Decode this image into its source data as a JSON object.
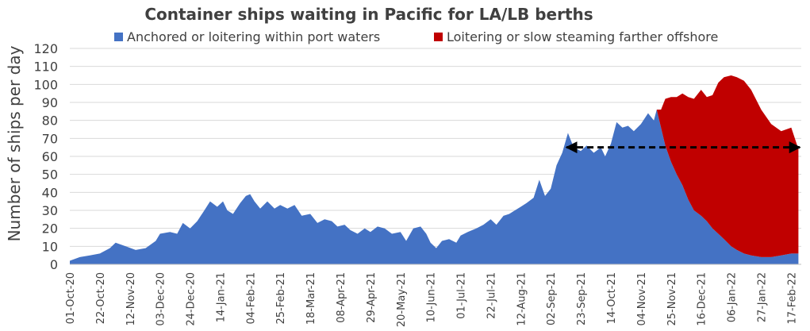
{
  "chart_data": {
    "type": "area",
    "title": "Container ships waiting in Pacific for LA/LB berths",
    "xlabel": "",
    "ylabel": "Number of ships per day",
    "ylim": [
      0,
      120
    ],
    "yticks": [
      0,
      10,
      20,
      30,
      40,
      50,
      60,
      70,
      80,
      90,
      100,
      110,
      120
    ],
    "xlim": [
      "2020-10-01",
      "2022-02-24"
    ],
    "xtick_labels": [
      "01-Oct-20",
      "22-Oct-20",
      "12-Nov-20",
      "03-Dec-20",
      "24-Dec-20",
      "14-Jan-21",
      "04-Feb-21",
      "25-Feb-21",
      "18-Mar-21",
      "08-Apr-21",
      "29-Apr-21",
      "20-May-21",
      "10-Jun-21",
      "01-Jul-21",
      "22-Jul-21",
      "12-Aug-21",
      "02-Sep-21",
      "23-Sep-21",
      "14-Oct-21",
      "04-Nov-21",
      "25-Nov-21",
      "16-Dec-21",
      "06-Jan-22",
      "27-Jan-22",
      "17-Feb-22"
    ],
    "stacked": true,
    "grid": true,
    "legend": "top",
    "colors": {
      "blue": "#4472c4",
      "red": "#c00000",
      "grid": "#d9d9d9"
    },
    "series": [
      {
        "name": "Anchored or loitering within port waters",
        "color": "#4472c4",
        "points": [
          [
            "2020-10-01",
            2
          ],
          [
            "2020-10-08",
            4
          ],
          [
            "2020-10-15",
            5
          ],
          [
            "2020-10-22",
            6
          ],
          [
            "2020-10-29",
            9
          ],
          [
            "2020-11-02",
            12
          ],
          [
            "2020-11-09",
            10
          ],
          [
            "2020-11-16",
            8
          ],
          [
            "2020-11-23",
            9
          ],
          [
            "2020-11-30",
            13
          ],
          [
            "2020-12-03",
            17
          ],
          [
            "2020-12-10",
            18
          ],
          [
            "2020-12-15",
            17
          ],
          [
            "2020-12-19",
            23
          ],
          [
            "2020-12-24",
            20
          ],
          [
            "2020-12-29",
            24
          ],
          [
            "2021-01-03",
            30
          ],
          [
            "2021-01-07",
            35
          ],
          [
            "2021-01-12",
            32
          ],
          [
            "2021-01-16",
            35
          ],
          [
            "2021-01-19",
            30
          ],
          [
            "2021-01-23",
            28
          ],
          [
            "2021-01-28",
            34
          ],
          [
            "2021-02-01",
            38
          ],
          [
            "2021-02-04",
            39
          ],
          [
            "2021-02-07",
            35
          ],
          [
            "2021-02-11",
            31
          ],
          [
            "2021-02-16",
            35
          ],
          [
            "2021-02-21",
            31
          ],
          [
            "2021-02-25",
            33
          ],
          [
            "2021-03-02",
            31
          ],
          [
            "2021-03-07",
            33
          ],
          [
            "2021-03-12",
            27
          ],
          [
            "2021-03-18",
            28
          ],
          [
            "2021-03-23",
            23
          ],
          [
            "2021-03-28",
            25
          ],
          [
            "2021-04-02",
            24
          ],
          [
            "2021-04-06",
            21
          ],
          [
            "2021-04-11",
            22
          ],
          [
            "2021-04-15",
            19
          ],
          [
            "2021-04-20",
            17
          ],
          [
            "2021-04-25",
            20
          ],
          [
            "2021-04-29",
            18
          ],
          [
            "2021-05-04",
            21
          ],
          [
            "2021-05-09",
            20
          ],
          [
            "2021-05-14",
            17
          ],
          [
            "2021-05-20",
            18
          ],
          [
            "2021-05-24",
            13
          ],
          [
            "2021-05-29",
            20
          ],
          [
            "2021-06-03",
            21
          ],
          [
            "2021-06-07",
            17
          ],
          [
            "2021-06-10",
            12
          ],
          [
            "2021-06-14",
            9
          ],
          [
            "2021-06-18",
            13
          ],
          [
            "2021-06-23",
            14
          ],
          [
            "2021-06-28",
            12
          ],
          [
            "2021-07-01",
            16
          ],
          [
            "2021-07-06",
            18
          ],
          [
            "2021-07-12",
            20
          ],
          [
            "2021-07-17",
            22
          ],
          [
            "2021-07-22",
            25
          ],
          [
            "2021-07-26",
            22
          ],
          [
            "2021-07-31",
            27
          ],
          [
            "2021-08-04",
            28
          ],
          [
            "2021-08-08",
            30
          ],
          [
            "2021-08-12",
            32
          ],
          [
            "2021-08-16",
            34
          ],
          [
            "2021-08-21",
            37
          ],
          [
            "2021-08-25",
            47
          ],
          [
            "2021-08-29",
            38
          ],
          [
            "2021-09-02",
            42
          ],
          [
            "2021-09-06",
            55
          ],
          [
            "2021-09-10",
            62
          ],
          [
            "2021-09-14",
            73
          ],
          [
            "2021-09-18",
            65
          ],
          [
            "2021-09-23",
            63
          ],
          [
            "2021-09-27",
            66
          ],
          [
            "2021-10-02",
            62
          ],
          [
            "2021-10-07",
            65
          ],
          [
            "2021-10-10",
            60
          ],
          [
            "2021-10-14",
            67
          ],
          [
            "2021-10-18",
            79
          ],
          [
            "2021-10-22",
            76
          ],
          [
            "2021-10-26",
            77
          ],
          [
            "2021-10-30",
            74
          ],
          [
            "2021-11-04",
            78
          ],
          [
            "2021-11-09",
            84
          ],
          [
            "2021-11-13",
            80
          ],
          [
            "2021-11-15",
            86
          ],
          [
            "2021-11-18",
            76
          ],
          [
            "2021-11-21",
            66
          ],
          [
            "2021-11-25",
            57
          ],
          [
            "2021-11-29",
            50
          ],
          [
            "2021-12-03",
            44
          ],
          [
            "2021-12-07",
            36
          ],
          [
            "2021-12-11",
            30
          ],
          [
            "2021-12-16",
            27
          ],
          [
            "2021-12-20",
            24
          ],
          [
            "2021-12-24",
            20
          ],
          [
            "2021-12-28",
            17
          ],
          [
            "2022-01-01",
            14
          ],
          [
            "2022-01-06",
            10
          ],
          [
            "2022-01-10",
            8
          ],
          [
            "2022-01-15",
            6
          ],
          [
            "2022-01-20",
            5
          ],
          [
            "2022-01-27",
            4
          ],
          [
            "2022-02-03",
            4
          ],
          [
            "2022-02-10",
            5
          ],
          [
            "2022-02-17",
            6
          ],
          [
            "2022-02-22",
            6
          ]
        ]
      },
      {
        "name": "Loitering or slow steaming farther offshore",
        "color": "#c00000",
        "points": [
          [
            "2021-11-15",
            0
          ],
          [
            "2021-11-18",
            10
          ],
          [
            "2021-11-21",
            26
          ],
          [
            "2021-11-25",
            36
          ],
          [
            "2021-11-29",
            43
          ],
          [
            "2021-12-03",
            51
          ],
          [
            "2021-12-07",
            57
          ],
          [
            "2021-12-11",
            62
          ],
          [
            "2021-12-16",
            70
          ],
          [
            "2021-12-20",
            69
          ],
          [
            "2021-12-24",
            74
          ],
          [
            "2021-12-28",
            84
          ],
          [
            "2022-01-01",
            90
          ],
          [
            "2022-01-06",
            95
          ],
          [
            "2022-01-10",
            96
          ],
          [
            "2022-01-15",
            96
          ],
          [
            "2022-01-20",
            92
          ],
          [
            "2022-01-27",
            82
          ],
          [
            "2022-02-03",
            74
          ],
          [
            "2022-02-10",
            69
          ],
          [
            "2022-02-17",
            70
          ],
          [
            "2022-02-22",
            58
          ]
        ]
      }
    ],
    "annotations": [
      {
        "type": "double-arrow",
        "style": "dashed",
        "color": "#000000",
        "x_start": "2021-09-13",
        "x_end": "2022-02-23",
        "y": 65
      }
    ]
  }
}
